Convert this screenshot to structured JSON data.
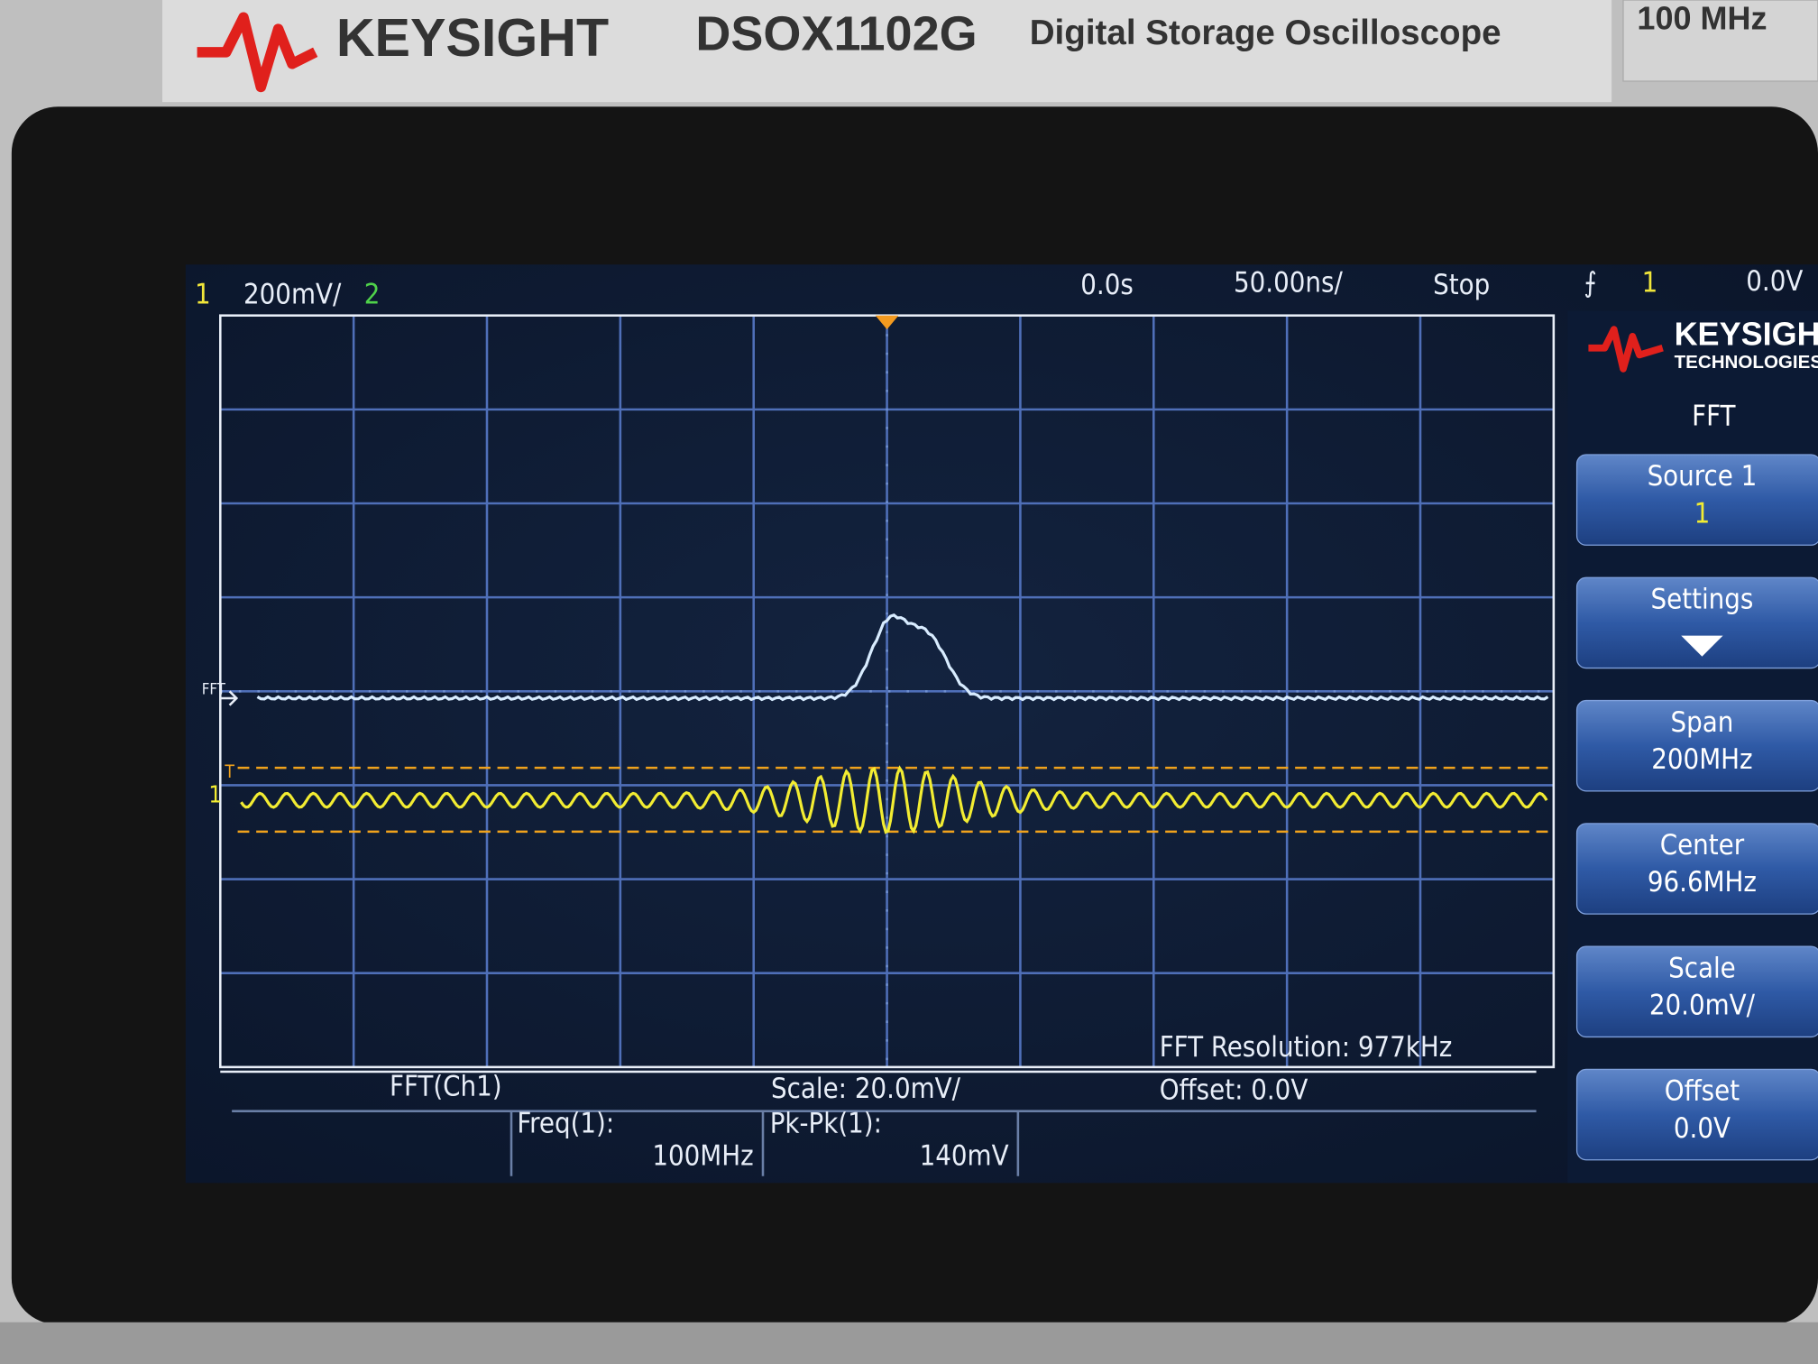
{
  "header": {
    "brand": "KEYSIGHT",
    "model": "DSOX1102G",
    "description": "Digital Storage Oscilloscope",
    "bandwidth": "100 MHz"
  },
  "status_bar": {
    "channel_1": "1",
    "channel_1_scale": "200mV/",
    "channel_2": "2",
    "time_delay": "0.0s",
    "time_scale": "50.00ns/",
    "run_state": "Stop",
    "trigger_channel": "1",
    "trigger_level": "0.0V"
  },
  "panel": {
    "logo": "KEYSIGHT",
    "logo_sub": "TECHNOLOGIES",
    "menu_title": "FFT",
    "softkeys": [
      {
        "label": "Source 1",
        "value": "1"
      },
      {
        "label": "Settings"
      },
      {
        "label": "Span",
        "value": "200MHz"
      },
      {
        "label": "Center",
        "value": "96.6MHz"
      },
      {
        "label": "Scale",
        "value": "20.0mV/"
      },
      {
        "label": "Offset",
        "value": "0.0V"
      }
    ]
  },
  "markers": {
    "fft": "FFT",
    "channel": "1",
    "trigger": "T"
  },
  "info": {
    "fft_resolution": "FFT Resolution: 977kHz",
    "source": "FFT(Ch1)",
    "scale": "Scale: 20.0mV/",
    "offset": "Offset: 0.0V"
  },
  "measurements": [
    {
      "label": "Freq(1):",
      "value": "100MHz"
    },
    {
      "label": "Pk-Pk(1):",
      "value": "140mV"
    }
  ]
}
